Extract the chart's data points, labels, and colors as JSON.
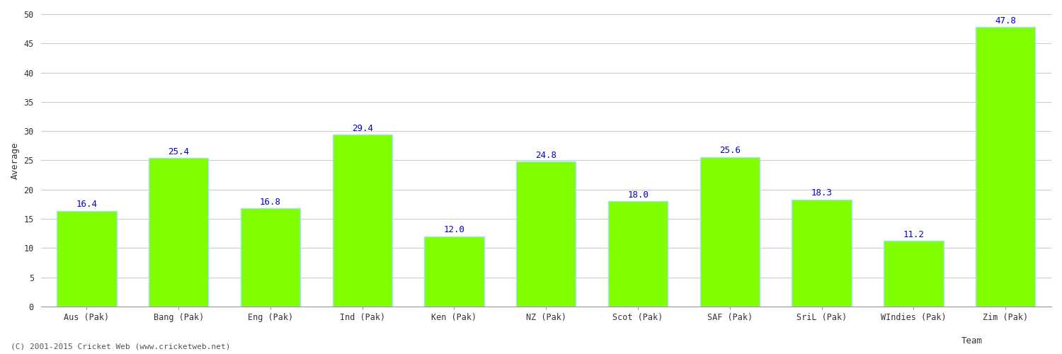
{
  "categories": [
    "Aus (Pak)",
    "Bang (Pak)",
    "Eng (Pak)",
    "Ind (Pak)",
    "Ken (Pak)",
    "NZ (Pak)",
    "Scot (Pak)",
    "SAF (Pak)",
    "SriL (Pak)",
    "WIndies (Pak)",
    "Zim (Pak)"
  ],
  "values": [
    16.4,
    25.4,
    16.8,
    29.4,
    12.0,
    24.8,
    18.0,
    25.6,
    18.3,
    11.2,
    47.8
  ],
  "bar_color": "#7fff00",
  "bar_edge_color": "#aaddff",
  "label_color": "#0000cc",
  "xlabel": "Team",
  "ylabel": "Average",
  "ylim": [
    0,
    50
  ],
  "yticks": [
    0,
    5,
    10,
    15,
    20,
    25,
    30,
    35,
    40,
    45,
    50
  ],
  "label_fontsize": 9,
  "axis_label_fontsize": 9,
  "tick_fontsize": 8.5,
  "footnote": "(C) 2001-2015 Cricket Web (www.cricketweb.net)",
  "footnote_fontsize": 8,
  "background_color": "#ffffff",
  "grid_color": "#cccccc"
}
